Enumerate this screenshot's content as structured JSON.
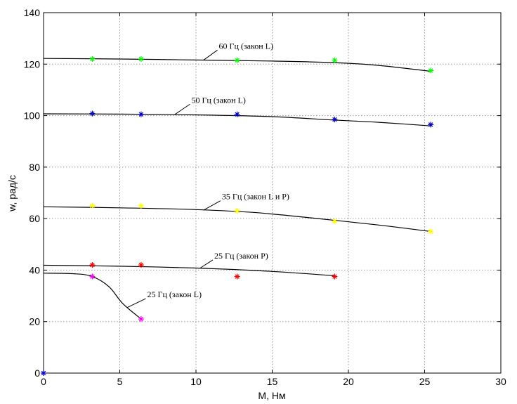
{
  "chart_data": {
    "type": "line",
    "title": "",
    "xlabel": "M, Нм",
    "ylabel": "w, рад/с",
    "xlim": [
      0,
      30
    ],
    "ylim": [
      0,
      140
    ],
    "xticks": [
      "0",
      "5",
      "10",
      "15",
      "20",
      "25",
      "30"
    ],
    "yticks": [
      "0",
      "20",
      "40",
      "60",
      "80",
      "100",
      "120",
      "140"
    ],
    "grid": true,
    "series": [
      {
        "name": "60 Гц (закон L)",
        "color": "#00ff00",
        "points": [
          [
            3.2,
            122
          ],
          [
            6.4,
            122
          ],
          [
            12.7,
            121.5
          ],
          [
            19.1,
            121.5
          ],
          [
            25.4,
            117.5
          ]
        ],
        "curve": [
          [
            0,
            122.2
          ],
          [
            5,
            122
          ],
          [
            10,
            121.6
          ],
          [
            15,
            121.2
          ],
          [
            19,
            120.6
          ],
          [
            22,
            119.5
          ],
          [
            25.4,
            117.2
          ]
        ],
        "label_anchor": [
          10.5,
          121.6
        ],
        "label_pos": [
          11.5,
          126
        ]
      },
      {
        "name": "50 Гц (закон L)",
        "color": "#0000cc",
        "points": [
          [
            3.2,
            100.8
          ],
          [
            6.4,
            100.5
          ],
          [
            12.7,
            100.5
          ],
          [
            19.1,
            98.5
          ],
          [
            25.4,
            96.5
          ]
        ],
        "curve": [
          [
            0,
            100.7
          ],
          [
            5,
            100.6
          ],
          [
            10,
            100.3
          ],
          [
            15,
            99.6
          ],
          [
            19,
            98.3
          ],
          [
            22,
            97.4
          ],
          [
            25.4,
            96
          ]
        ],
        "label_anchor": [
          8.6,
          100.4
        ],
        "label_pos": [
          9.7,
          105
        ]
      },
      {
        "name": "35 Гц (закон L и P)",
        "color": "#ffff00",
        "points": [
          [
            3.2,
            65
          ],
          [
            6.4,
            65
          ],
          [
            12.7,
            63
          ],
          [
            19.1,
            59
          ],
          [
            25.4,
            55
          ]
        ],
        "curve": [
          [
            0,
            64.6
          ],
          [
            5,
            64.2
          ],
          [
            10,
            63.5
          ],
          [
            14,
            62.3
          ],
          [
            18,
            60
          ],
          [
            22,
            57.5
          ],
          [
            25.4,
            55
          ]
        ],
        "label_anchor": [
          10.5,
          63.3
        ],
        "label_pos": [
          11.7,
          67.5
        ]
      },
      {
        "name": "25 Гц (закон P)",
        "color": "#ff0000",
        "points": [
          [
            3.2,
            42
          ],
          [
            6.4,
            42
          ],
          [
            12.7,
            37.5
          ],
          [
            19.1,
            37.5
          ]
        ],
        "curve": [
          [
            0,
            41.9
          ],
          [
            5,
            41.5
          ],
          [
            10,
            40.8
          ],
          [
            15,
            39.5
          ],
          [
            19.1,
            37.8
          ]
        ],
        "label_anchor": [
          10.3,
          40.9
        ],
        "label_pos": [
          11.2,
          44.5
        ]
      },
      {
        "name": "25 Гц (закон L)",
        "color": "#ff00ff",
        "points": [
          [
            3.2,
            37.5
          ],
          [
            6.4,
            21
          ]
        ],
        "curve": [
          [
            0,
            38.8
          ],
          [
            2,
            38.6
          ],
          [
            3.2,
            37.5
          ],
          [
            4.3,
            33.5
          ],
          [
            5.2,
            27
          ],
          [
            6.4,
            21
          ]
        ],
        "label_anchor": [
          5.5,
          25.5
        ],
        "label_pos": [
          6.8,
          29.5
        ]
      }
    ],
    "extra_points": [
      {
        "x": 0,
        "y": 0,
        "color": "#0000cc"
      }
    ]
  }
}
